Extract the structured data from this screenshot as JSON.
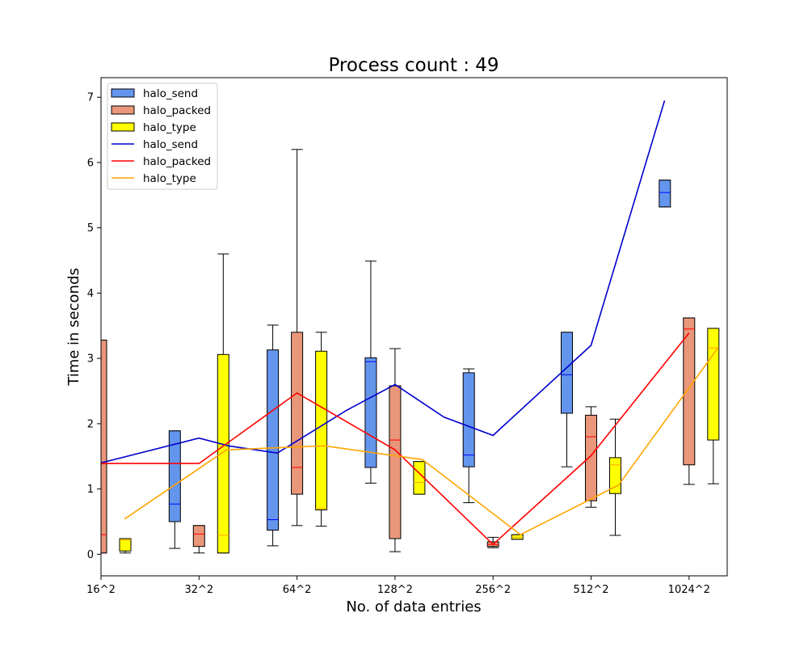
{
  "chart_data": {
    "type": "box",
    "title": "Process count : 49",
    "xlabel": "No. of data entries",
    "ylabel": "Time in seconds",
    "categories": [
      "16^2",
      "32^2",
      "64^2",
      "128^2",
      "256^2",
      "512^2",
      "1024^2"
    ],
    "ylim": [
      -0.33,
      7.3
    ],
    "yticks": [
      0,
      1,
      2,
      3,
      4,
      5,
      6,
      7
    ],
    "grid": false,
    "legend_position": "top-left",
    "box_series": [
      {
        "name": "halo_send",
        "fill": "#6495ED",
        "median_color": "#0000FF",
        "offset": -1,
        "boxes": [
          null,
          {
            "min": 0.09,
            "q1": 0.5,
            "median": 0.77,
            "q3": 1.89,
            "max": 1.89
          },
          {
            "min": 0.13,
            "q1": 0.37,
            "median": 0.53,
            "q3": 3.13,
            "max": 3.51
          },
          {
            "min": 1.09,
            "q1": 1.33,
            "median": 2.95,
            "q3": 3.01,
            "max": 4.49
          },
          {
            "min": 0.79,
            "q1": 1.34,
            "median": 1.52,
            "q3": 2.78,
            "max": 2.84
          },
          {
            "min": 1.34,
            "q1": 2.16,
            "median": 2.75,
            "q3": 3.4,
            "max": 3.4
          },
          {
            "min": 5.32,
            "q1": 5.32,
            "median": 5.54,
            "q3": 5.73,
            "max": 5.73
          }
        ]
      },
      {
        "name": "halo_packed",
        "fill": "#E9967A",
        "median_color": "#FF0000",
        "offset": 0,
        "boxes": [
          {
            "min": 0.02,
            "q1": 0.02,
            "median": 0.3,
            "q3": 3.28,
            "max": 3.28
          },
          {
            "min": 0.02,
            "q1": 0.12,
            "median": 0.31,
            "q3": 0.44,
            "max": 0.44
          },
          {
            "min": 0.44,
            "q1": 0.92,
            "median": 1.33,
            "q3": 3.4,
            "max": 6.2
          },
          {
            "min": 0.04,
            "q1": 0.24,
            "median": 1.75,
            "q3": 2.58,
            "max": 3.15
          },
          {
            "min": 0.1,
            "q1": 0.12,
            "median": 0.15,
            "q3": 0.19,
            "max": 0.26
          },
          {
            "min": 0.72,
            "q1": 0.82,
            "median": 1.8,
            "q3": 2.13,
            "max": 2.26
          },
          {
            "min": 1.07,
            "q1": 1.37,
            "median": 3.45,
            "q3": 3.62,
            "max": 3.62
          }
        ]
      },
      {
        "name": "halo_type",
        "fill": "#FFFF00",
        "median_color": "#FFA500",
        "offset": 1,
        "boxes": [
          {
            "min": 0.02,
            "q1": 0.05,
            "median": 0.22,
            "q3": 0.24,
            "max": 0.24
          },
          {
            "min": 0.02,
            "q1": 0.02,
            "median": 0.29,
            "q3": 3.06,
            "max": 4.6
          },
          {
            "min": 0.43,
            "q1": 0.68,
            "median": 0.7,
            "q3": 3.11,
            "max": 3.4
          },
          {
            "min": 0.92,
            "q1": 0.92,
            "median": 1.1,
            "q3": 1.42,
            "max": 1.42
          },
          {
            "min": 0.23,
            "q1": 0.23,
            "median": 0.26,
            "q3": 0.3,
            "max": 0.3
          },
          {
            "min": 0.29,
            "q1": 0.93,
            "median": 1.37,
            "q3": 1.48,
            "max": 2.07
          },
          {
            "min": 1.08,
            "q1": 1.75,
            "median": 3.16,
            "q3": 3.46,
            "max": 3.46
          }
        ]
      }
    ],
    "line_series": [
      {
        "name": "halo_send",
        "color": "#0000CD",
        "points": [
          [
            0,
            1.4
          ],
          [
            1,
            1.78
          ],
          [
            1.3,
            1.66
          ],
          [
            1.8,
            1.55
          ],
          [
            2.5,
            2.2
          ],
          [
            3,
            2.6
          ],
          [
            3.5,
            2.1
          ],
          [
            4,
            1.82
          ],
          [
            5,
            3.2
          ],
          [
            5.75,
            6.95
          ]
        ]
      },
      {
        "name": "halo_packed",
        "color": "#FF0000",
        "points": [
          [
            0,
            1.39
          ],
          [
            1,
            1.39
          ],
          [
            2,
            2.47
          ],
          [
            3,
            1.6
          ],
          [
            4,
            0.15
          ],
          [
            5,
            1.51
          ],
          [
            6,
            3.39
          ]
        ]
      },
      {
        "name": "halo_type",
        "color": "#FFA500",
        "points": [
          [
            0.24,
            0.54
          ],
          [
            1.28,
            1.6
          ],
          [
            2.28,
            1.66
          ],
          [
            3.28,
            1.45
          ],
          [
            4.28,
            0.3
          ],
          [
            5.28,
            1.06
          ],
          [
            6.3,
            3.17
          ]
        ]
      }
    ],
    "legend": {
      "entries": [
        {
          "label": "halo_send",
          "kind": "patch",
          "color": "#6495ED"
        },
        {
          "label": "halo_packed",
          "kind": "patch",
          "color": "#E9967A"
        },
        {
          "label": "halo_type",
          "kind": "patch",
          "color": "#FFFF00"
        },
        {
          "label": "halo_send",
          "kind": "line",
          "color": "#0000CD"
        },
        {
          "label": "halo_packed",
          "kind": "line",
          "color": "#FF0000"
        },
        {
          "label": "halo_type",
          "kind": "line",
          "color": "#FFA500"
        }
      ]
    }
  }
}
